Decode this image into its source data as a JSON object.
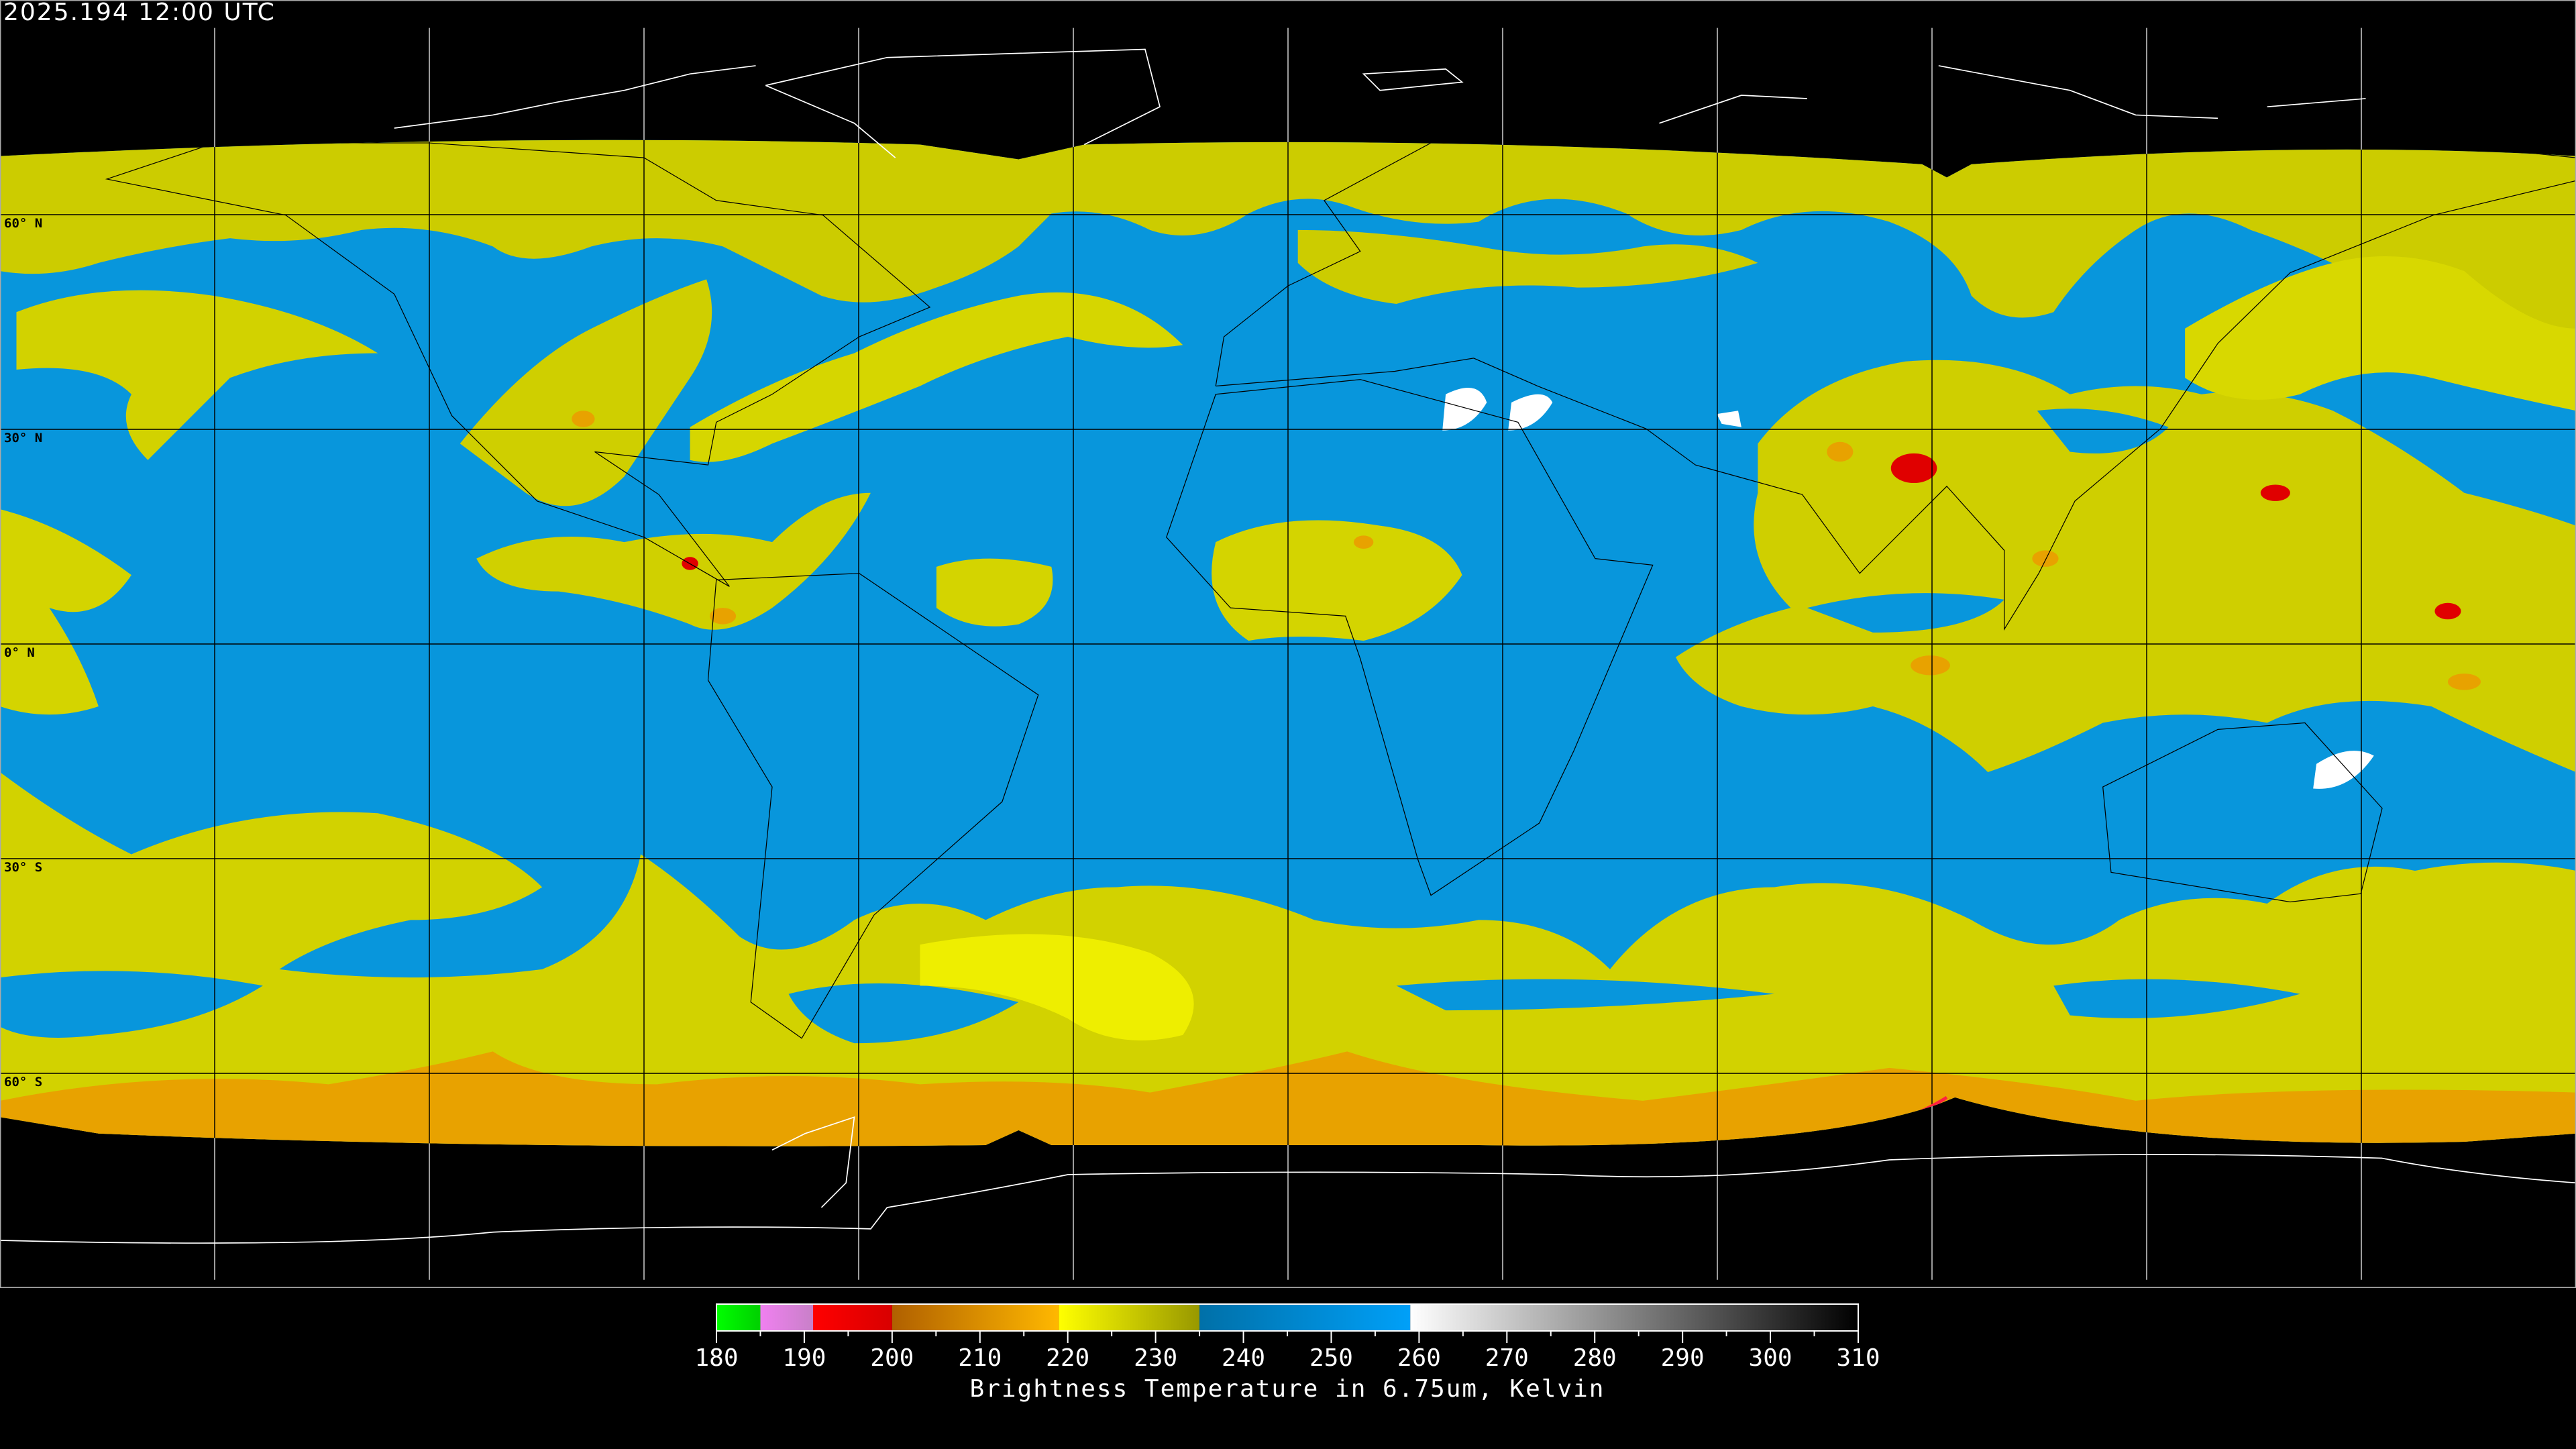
{
  "header": {
    "title": "2025.194 12:00 UTC"
  },
  "map": {
    "lat_labels": [
      "60° N",
      "30° N",
      "0° N",
      "30° S",
      "60° S"
    ],
    "colors": {
      "ocean_blue": "#0896dc",
      "yellow": "#d2d200",
      "bright_yellow": "#eef000",
      "orange": "#e8a200",
      "red": "#e00000",
      "white": "#ffffff",
      "grid_on_data": "#000000",
      "grid_off_data": "#ffffff"
    }
  },
  "colorbar": {
    "label": "Brightness Temperature in 6.75um, Kelvin",
    "range": [
      180,
      310
    ],
    "ticks": [
      "180",
      "190",
      "200",
      "210",
      "220",
      "230",
      "240",
      "250",
      "260",
      "270",
      "280",
      "290",
      "300",
      "310"
    ],
    "segments": [
      {
        "from": 180,
        "to": 185,
        "c1": "#00ff00",
        "c2": "#00d000"
      },
      {
        "from": 185,
        "to": 191,
        "c1": "#f080f0",
        "c2": "#c880c8"
      },
      {
        "from": 191,
        "to": 200,
        "c1": "#ff0000",
        "c2": "#d80000"
      },
      {
        "from": 200,
        "to": 219,
        "c1": "#b06000",
        "c2": "#ffb800"
      },
      {
        "from": 219,
        "to": 235,
        "c1": "#ffff00",
        "c2": "#989800"
      },
      {
        "from": 235,
        "to": 259,
        "c1": "#0070a8",
        "c2": "#00a0f8"
      },
      {
        "from": 259,
        "to": 310,
        "c1": "#ffffff",
        "c2": "#000000"
      }
    ]
  }
}
